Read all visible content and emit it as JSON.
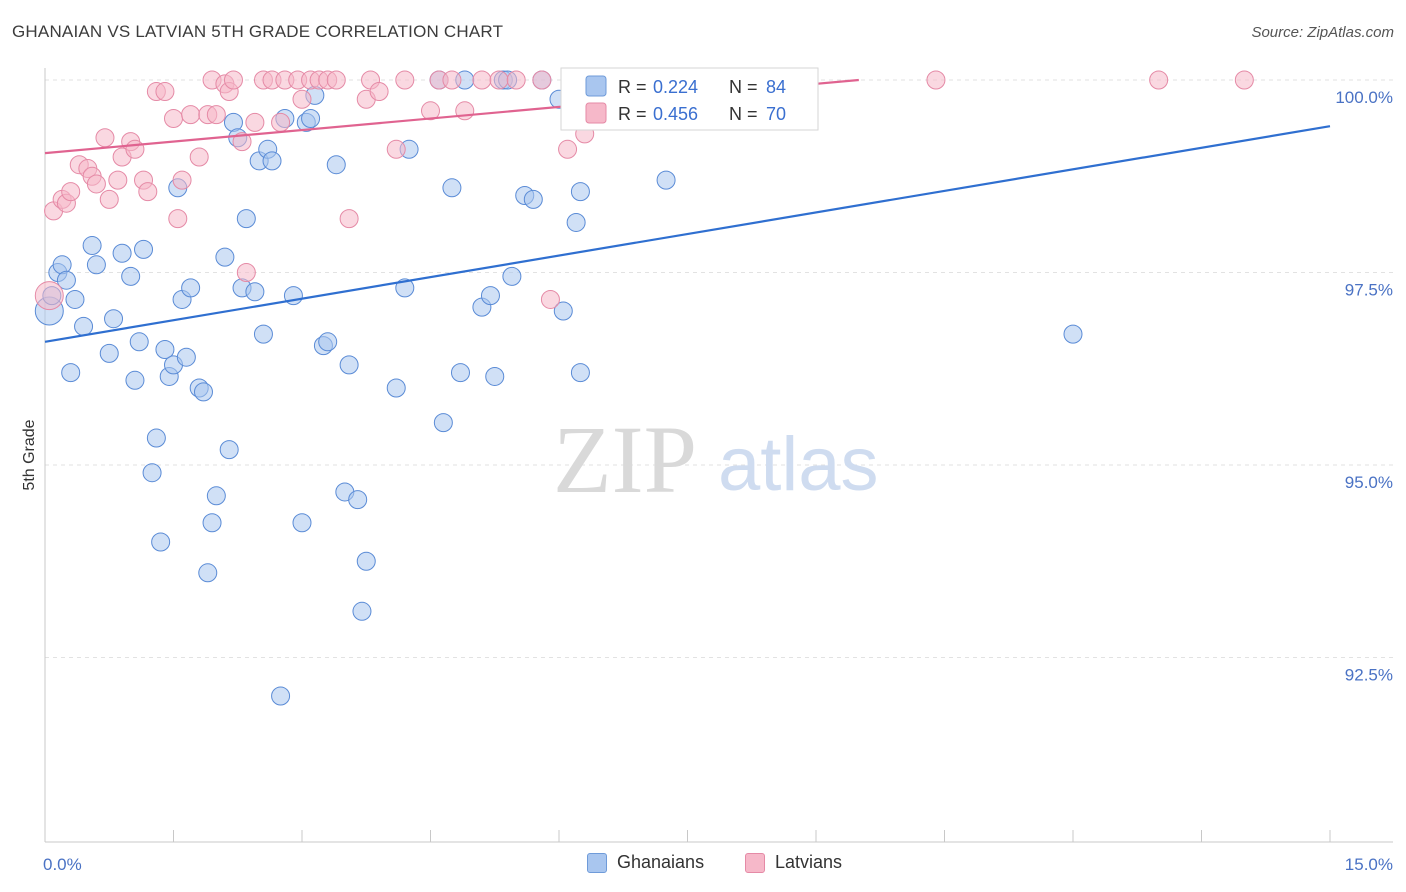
{
  "header": {
    "title": "GHANAIAN VS LATVIAN 5TH GRADE CORRELATION CHART",
    "source": "Source: ZipAtlas.com"
  },
  "watermark": {
    "zip": "ZIP",
    "atlas": "atlas"
  },
  "legend": {
    "rows": [
      {
        "r_label": "R = ",
        "r_value": "0.224",
        "n_label": "N = ",
        "n_value": "84",
        "color": "#a9c6ef",
        "stroke": "#6f9bd9"
      },
      {
        "r_label": "R = ",
        "r_value": "0.456",
        "n_label": "N = ",
        "n_value": "70",
        "color": "#f6b8c9",
        "stroke": "#e58aa6"
      }
    ]
  },
  "bottom_legend": {
    "ghanaians": "Ghanaians",
    "latvians": "Latvians"
  },
  "chart_data": {
    "type": "scatter",
    "title": "GHANAIAN VS LATVIAN 5TH GRADE CORRELATION CHART",
    "xlabel": "",
    "ylabel": "5th Grade",
    "xlim": [
      0,
      15
    ],
    "ylim": [
      90.5,
      100.2
    ],
    "x_tick_labels": [
      "0.0%",
      "15.0%"
    ],
    "y_ticks": [
      92.5,
      95.0,
      97.5,
      100.0
    ],
    "y_tick_labels": [
      "92.5%",
      "95.0%",
      "97.5%",
      "100.0%"
    ],
    "grid": "horizontal dashed",
    "legend_position": "top-center",
    "series": [
      {
        "name": "Ghanaians",
        "color": "#a9c6ef",
        "stroke": "#5a8bd6",
        "line_color": "#2f6fd0",
        "trend": {
          "x": [
            0.0,
            15.0
          ],
          "y": [
            96.6,
            99.4
          ]
        },
        "points": [
          [
            0.05,
            97.0
          ],
          [
            0.08,
            97.2
          ],
          [
            0.15,
            97.5
          ],
          [
            0.2,
            97.6
          ],
          [
            0.25,
            97.4
          ],
          [
            0.3,
            96.2
          ],
          [
            0.35,
            97.15
          ],
          [
            0.45,
            96.8
          ],
          [
            0.55,
            97.85
          ],
          [
            0.6,
            97.6
          ],
          [
            0.75,
            96.45
          ],
          [
            0.8,
            96.9
          ],
          [
            0.9,
            97.75
          ],
          [
            1.0,
            97.45
          ],
          [
            1.05,
            96.1
          ],
          [
            1.1,
            96.6
          ],
          [
            1.15,
            97.8
          ],
          [
            1.3,
            95.35
          ],
          [
            1.25,
            94.9
          ],
          [
            1.35,
            94.0
          ],
          [
            1.4,
            96.5
          ],
          [
            1.45,
            96.15
          ],
          [
            1.5,
            96.3
          ],
          [
            1.55,
            98.6
          ],
          [
            1.6,
            97.15
          ],
          [
            1.65,
            96.4
          ],
          [
            1.7,
            97.3
          ],
          [
            1.8,
            96.0
          ],
          [
            1.85,
            95.95
          ],
          [
            1.9,
            93.6
          ],
          [
            1.95,
            94.25
          ],
          [
            2.0,
            94.6
          ],
          [
            2.1,
            97.7
          ],
          [
            2.15,
            95.2
          ],
          [
            2.2,
            99.45
          ],
          [
            2.25,
            99.25
          ],
          [
            2.3,
            97.3
          ],
          [
            2.35,
            98.2
          ],
          [
            2.45,
            97.25
          ],
          [
            2.5,
            98.95
          ],
          [
            2.55,
            96.7
          ],
          [
            2.6,
            99.1
          ],
          [
            2.65,
            98.95
          ],
          [
            2.75,
            92.0
          ],
          [
            2.8,
            99.5
          ],
          [
            2.9,
            97.2
          ],
          [
            3.0,
            94.25
          ],
          [
            3.05,
            99.45
          ],
          [
            3.1,
            99.5
          ],
          [
            3.15,
            99.8
          ],
          [
            3.25,
            96.55
          ],
          [
            3.3,
            96.6
          ],
          [
            3.4,
            98.9
          ],
          [
            3.5,
            94.65
          ],
          [
            3.55,
            96.3
          ],
          [
            3.65,
            94.55
          ],
          [
            3.7,
            93.1
          ],
          [
            3.75,
            93.75
          ],
          [
            4.1,
            96.0
          ],
          [
            4.2,
            97.3
          ],
          [
            4.25,
            99.1
          ],
          [
            4.6,
            100.0
          ],
          [
            4.65,
            95.55
          ],
          [
            4.75,
            98.6
          ],
          [
            4.85,
            96.2
          ],
          [
            4.9,
            100.0
          ],
          [
            5.1,
            97.05
          ],
          [
            5.2,
            97.2
          ],
          [
            5.25,
            96.15
          ],
          [
            5.35,
            100.0
          ],
          [
            5.4,
            100.0
          ],
          [
            5.45,
            97.45
          ],
          [
            5.6,
            98.5
          ],
          [
            5.7,
            98.45
          ],
          [
            5.8,
            100.0
          ],
          [
            6.0,
            99.75
          ],
          [
            6.05,
            97.0
          ],
          [
            6.2,
            98.15
          ],
          [
            6.25,
            98.55
          ],
          [
            6.25,
            96.2
          ],
          [
            7.0,
            100.0
          ],
          [
            7.25,
            98.7
          ],
          [
            8.5,
            100.0
          ],
          [
            12.0,
            96.7
          ]
        ]
      },
      {
        "name": "Latvians",
        "color": "#f6b8c9",
        "stroke": "#e58aa6",
        "line_color": "#e06390",
        "trend": {
          "x": [
            0.0,
            9.5
          ],
          "y": [
            99.05,
            100.0
          ]
        },
        "points": [
          [
            0.05,
            97.2
          ],
          [
            0.1,
            98.3
          ],
          [
            0.2,
            98.45
          ],
          [
            0.25,
            98.4
          ],
          [
            0.3,
            98.55
          ],
          [
            0.4,
            98.9
          ],
          [
            0.5,
            98.85
          ],
          [
            0.55,
            98.75
          ],
          [
            0.6,
            98.65
          ],
          [
            0.7,
            99.25
          ],
          [
            0.75,
            98.45
          ],
          [
            0.85,
            98.7
          ],
          [
            0.9,
            99.0
          ],
          [
            1.0,
            99.2
          ],
          [
            1.05,
            99.1
          ],
          [
            1.15,
            98.7
          ],
          [
            1.2,
            98.55
          ],
          [
            1.3,
            99.85
          ],
          [
            1.4,
            99.85
          ],
          [
            1.5,
            99.5
          ],
          [
            1.55,
            98.2
          ],
          [
            1.6,
            98.7
          ],
          [
            1.7,
            99.55
          ],
          [
            1.8,
            99.0
          ],
          [
            1.9,
            99.55
          ],
          [
            1.95,
            100.0
          ],
          [
            2.0,
            99.55
          ],
          [
            2.1,
            99.95
          ],
          [
            2.15,
            99.85
          ],
          [
            2.2,
            100.0
          ],
          [
            2.3,
            99.2
          ],
          [
            2.35,
            97.5
          ],
          [
            2.45,
            99.45
          ],
          [
            2.55,
            100.0
          ],
          [
            2.65,
            100.0
          ],
          [
            2.75,
            99.45
          ],
          [
            2.8,
            100.0
          ],
          [
            2.95,
            100.0
          ],
          [
            3.0,
            99.75
          ],
          [
            3.1,
            100.0
          ],
          [
            3.2,
            100.0
          ],
          [
            3.3,
            100.0
          ],
          [
            3.4,
            100.0
          ],
          [
            3.55,
            98.2
          ],
          [
            3.75,
            99.75
          ],
          [
            3.8,
            100.0
          ],
          [
            3.9,
            99.85
          ],
          [
            4.1,
            99.1
          ],
          [
            4.2,
            100.0
          ],
          [
            4.5,
            99.6
          ],
          [
            4.6,
            100.0
          ],
          [
            4.75,
            100.0
          ],
          [
            4.9,
            99.6
          ],
          [
            5.1,
            100.0
          ],
          [
            5.3,
            100.0
          ],
          [
            5.5,
            100.0
          ],
          [
            5.8,
            100.0
          ],
          [
            5.9,
            97.15
          ],
          [
            6.1,
            99.1
          ],
          [
            6.25,
            100.0
          ],
          [
            6.3,
            99.3
          ],
          [
            6.4,
            100.0
          ],
          [
            6.5,
            100.0
          ],
          [
            7.0,
            100.0
          ],
          [
            7.5,
            100.0
          ],
          [
            8.0,
            100.0
          ],
          [
            8.5,
            100.0
          ],
          [
            10.4,
            100.0
          ],
          [
            13.0,
            100.0
          ],
          [
            14.0,
            100.0
          ]
        ]
      }
    ]
  }
}
